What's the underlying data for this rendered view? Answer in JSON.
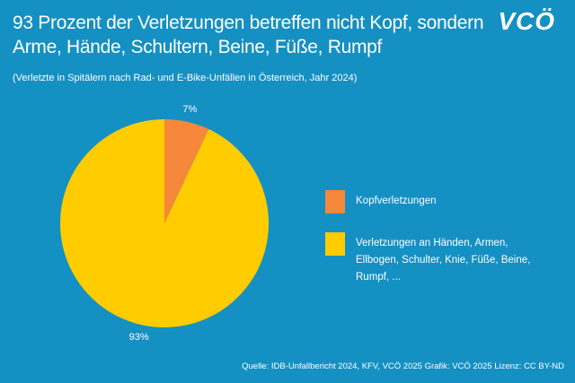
{
  "logo": "VCÖ",
  "chart_data": {
    "type": "pie",
    "title": "93 Prozent der Verletzungen betreffen nicht Kopf, sondern Arme, Hände, Schultern, Beine, Füße, Rumpf",
    "subtitle": "(Verletzte in Spitälern nach Rad- und E-Bike-Unfällen in Österreich, Jahr 2024)",
    "categories": [
      "Kopfverletzungen",
      "Verletzungen an Händen, Armen, Ellbogen, Schulter, Knie, Füße, Beine, Rumpf, ..."
    ],
    "values": [
      7,
      93
    ],
    "value_labels": [
      "7%",
      "93%"
    ],
    "colors": [
      "#f5883a",
      "#ffcc00"
    ],
    "legend": "right",
    "source": "Quelle: IDB-Unfallbericht 2024, KFV, VCÖ 2025 Grafik: VCÖ 2025 Lizenz: CC BY-ND"
  }
}
